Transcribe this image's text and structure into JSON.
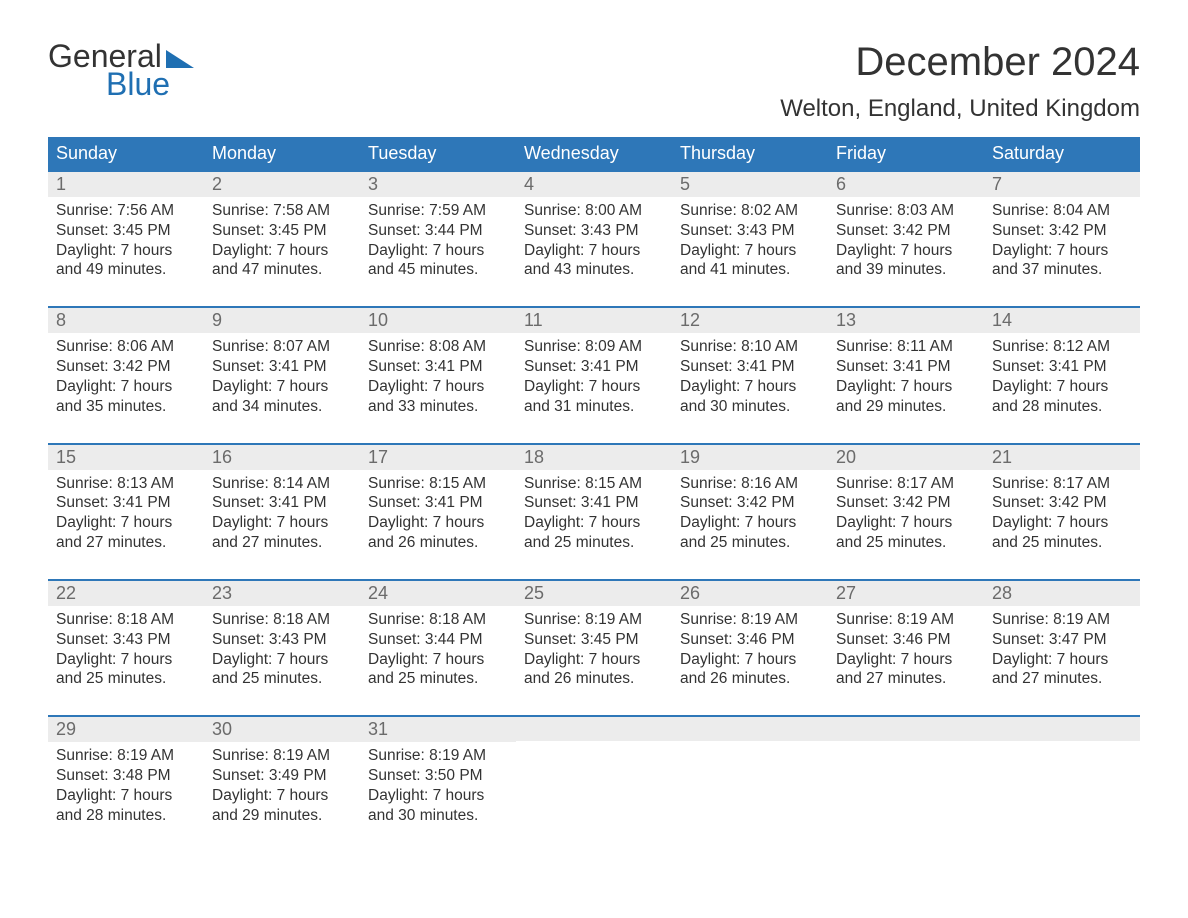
{
  "logo": {
    "word1": "General",
    "word2": "Blue"
  },
  "header": {
    "month_title": "December 2024",
    "location": "Welton, England, United Kingdom"
  },
  "colors": {
    "header_bg": "#2e77b8",
    "header_text": "#ffffff",
    "daynum_bg": "#ececec",
    "daynum_text": "#6b6b6b",
    "body_text": "#333333",
    "logo_blue": "#1f6fb2",
    "week_divider": "#2e77b8",
    "page_bg": "#ffffff"
  },
  "fonts": {
    "month_title_size_pt": 30,
    "location_size_pt": 18,
    "dow_size_pt": 14,
    "daynum_size_pt": 14,
    "body_size_pt": 12
  },
  "days_of_week": [
    "Sunday",
    "Monday",
    "Tuesday",
    "Wednesday",
    "Thursday",
    "Friday",
    "Saturday"
  ],
  "weeks": [
    [
      {
        "num": "1",
        "sunrise": "Sunrise: 7:56 AM",
        "sunset": "Sunset: 3:45 PM",
        "dl1": "Daylight: 7 hours",
        "dl2": "and 49 minutes."
      },
      {
        "num": "2",
        "sunrise": "Sunrise: 7:58 AM",
        "sunset": "Sunset: 3:45 PM",
        "dl1": "Daylight: 7 hours",
        "dl2": "and 47 minutes."
      },
      {
        "num": "3",
        "sunrise": "Sunrise: 7:59 AM",
        "sunset": "Sunset: 3:44 PM",
        "dl1": "Daylight: 7 hours",
        "dl2": "and 45 minutes."
      },
      {
        "num": "4",
        "sunrise": "Sunrise: 8:00 AM",
        "sunset": "Sunset: 3:43 PM",
        "dl1": "Daylight: 7 hours",
        "dl2": "and 43 minutes."
      },
      {
        "num": "5",
        "sunrise": "Sunrise: 8:02 AM",
        "sunset": "Sunset: 3:43 PM",
        "dl1": "Daylight: 7 hours",
        "dl2": "and 41 minutes."
      },
      {
        "num": "6",
        "sunrise": "Sunrise: 8:03 AM",
        "sunset": "Sunset: 3:42 PM",
        "dl1": "Daylight: 7 hours",
        "dl2": "and 39 minutes."
      },
      {
        "num": "7",
        "sunrise": "Sunrise: 8:04 AM",
        "sunset": "Sunset: 3:42 PM",
        "dl1": "Daylight: 7 hours",
        "dl2": "and 37 minutes."
      }
    ],
    [
      {
        "num": "8",
        "sunrise": "Sunrise: 8:06 AM",
        "sunset": "Sunset: 3:42 PM",
        "dl1": "Daylight: 7 hours",
        "dl2": "and 35 minutes."
      },
      {
        "num": "9",
        "sunrise": "Sunrise: 8:07 AM",
        "sunset": "Sunset: 3:41 PM",
        "dl1": "Daylight: 7 hours",
        "dl2": "and 34 minutes."
      },
      {
        "num": "10",
        "sunrise": "Sunrise: 8:08 AM",
        "sunset": "Sunset: 3:41 PM",
        "dl1": "Daylight: 7 hours",
        "dl2": "and 33 minutes."
      },
      {
        "num": "11",
        "sunrise": "Sunrise: 8:09 AM",
        "sunset": "Sunset: 3:41 PM",
        "dl1": "Daylight: 7 hours",
        "dl2": "and 31 minutes."
      },
      {
        "num": "12",
        "sunrise": "Sunrise: 8:10 AM",
        "sunset": "Sunset: 3:41 PM",
        "dl1": "Daylight: 7 hours",
        "dl2": "and 30 minutes."
      },
      {
        "num": "13",
        "sunrise": "Sunrise: 8:11 AM",
        "sunset": "Sunset: 3:41 PM",
        "dl1": "Daylight: 7 hours",
        "dl2": "and 29 minutes."
      },
      {
        "num": "14",
        "sunrise": "Sunrise: 8:12 AM",
        "sunset": "Sunset: 3:41 PM",
        "dl1": "Daylight: 7 hours",
        "dl2": "and 28 minutes."
      }
    ],
    [
      {
        "num": "15",
        "sunrise": "Sunrise: 8:13 AM",
        "sunset": "Sunset: 3:41 PM",
        "dl1": "Daylight: 7 hours",
        "dl2": "and 27 minutes."
      },
      {
        "num": "16",
        "sunrise": "Sunrise: 8:14 AM",
        "sunset": "Sunset: 3:41 PM",
        "dl1": "Daylight: 7 hours",
        "dl2": "and 27 minutes."
      },
      {
        "num": "17",
        "sunrise": "Sunrise: 8:15 AM",
        "sunset": "Sunset: 3:41 PM",
        "dl1": "Daylight: 7 hours",
        "dl2": "and 26 minutes."
      },
      {
        "num": "18",
        "sunrise": "Sunrise: 8:15 AM",
        "sunset": "Sunset: 3:41 PM",
        "dl1": "Daylight: 7 hours",
        "dl2": "and 25 minutes."
      },
      {
        "num": "19",
        "sunrise": "Sunrise: 8:16 AM",
        "sunset": "Sunset: 3:42 PM",
        "dl1": "Daylight: 7 hours",
        "dl2": "and 25 minutes."
      },
      {
        "num": "20",
        "sunrise": "Sunrise: 8:17 AM",
        "sunset": "Sunset: 3:42 PM",
        "dl1": "Daylight: 7 hours",
        "dl2": "and 25 minutes."
      },
      {
        "num": "21",
        "sunrise": "Sunrise: 8:17 AM",
        "sunset": "Sunset: 3:42 PM",
        "dl1": "Daylight: 7 hours",
        "dl2": "and 25 minutes."
      }
    ],
    [
      {
        "num": "22",
        "sunrise": "Sunrise: 8:18 AM",
        "sunset": "Sunset: 3:43 PM",
        "dl1": "Daylight: 7 hours",
        "dl2": "and 25 minutes."
      },
      {
        "num": "23",
        "sunrise": "Sunrise: 8:18 AM",
        "sunset": "Sunset: 3:43 PM",
        "dl1": "Daylight: 7 hours",
        "dl2": "and 25 minutes."
      },
      {
        "num": "24",
        "sunrise": "Sunrise: 8:18 AM",
        "sunset": "Sunset: 3:44 PM",
        "dl1": "Daylight: 7 hours",
        "dl2": "and 25 minutes."
      },
      {
        "num": "25",
        "sunrise": "Sunrise: 8:19 AM",
        "sunset": "Sunset: 3:45 PM",
        "dl1": "Daylight: 7 hours",
        "dl2": "and 26 minutes."
      },
      {
        "num": "26",
        "sunrise": "Sunrise: 8:19 AM",
        "sunset": "Sunset: 3:46 PM",
        "dl1": "Daylight: 7 hours",
        "dl2": "and 26 minutes."
      },
      {
        "num": "27",
        "sunrise": "Sunrise: 8:19 AM",
        "sunset": "Sunset: 3:46 PM",
        "dl1": "Daylight: 7 hours",
        "dl2": "and 27 minutes."
      },
      {
        "num": "28",
        "sunrise": "Sunrise: 8:19 AM",
        "sunset": "Sunset: 3:47 PM",
        "dl1": "Daylight: 7 hours",
        "dl2": "and 27 minutes."
      }
    ],
    [
      {
        "num": "29",
        "sunrise": "Sunrise: 8:19 AM",
        "sunset": "Sunset: 3:48 PM",
        "dl1": "Daylight: 7 hours",
        "dl2": "and 28 minutes."
      },
      {
        "num": "30",
        "sunrise": "Sunrise: 8:19 AM",
        "sunset": "Sunset: 3:49 PM",
        "dl1": "Daylight: 7 hours",
        "dl2": "and 29 minutes."
      },
      {
        "num": "31",
        "sunrise": "Sunrise: 8:19 AM",
        "sunset": "Sunset: 3:50 PM",
        "dl1": "Daylight: 7 hours",
        "dl2": "and 30 minutes."
      },
      {
        "empty": true
      },
      {
        "empty": true
      },
      {
        "empty": true
      },
      {
        "empty": true
      }
    ]
  ]
}
